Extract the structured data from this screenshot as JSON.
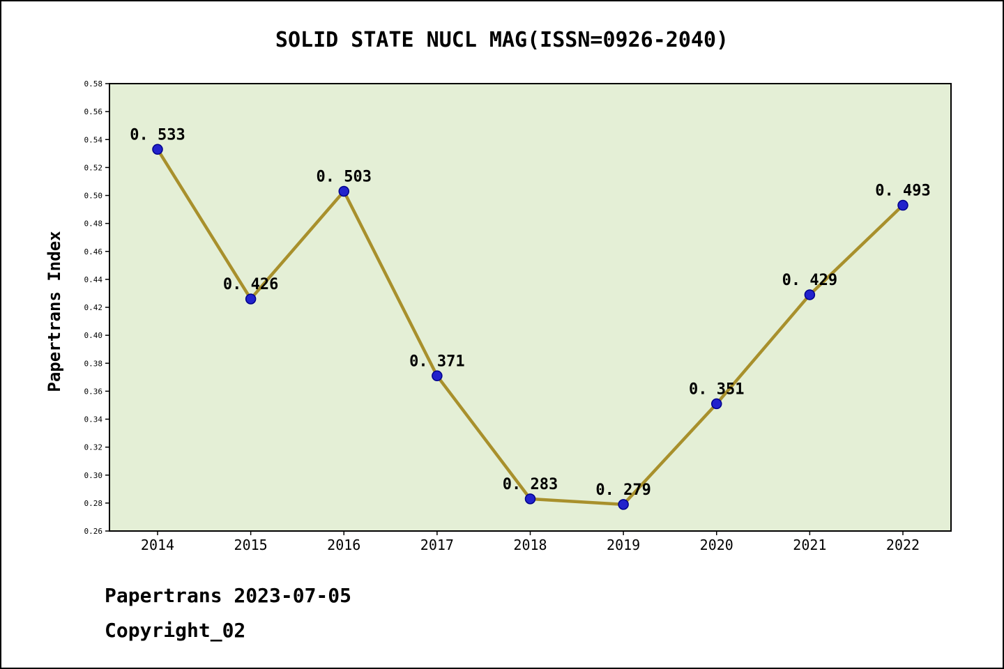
{
  "title": "SOLID STATE NUCL MAG(ISSN=0926-2040)",
  "footer": {
    "line1": "Papertrans 2023-07-05",
    "line2": "Copyright_02"
  },
  "chart_data": {
    "type": "line",
    "title": "SOLID STATE NUCL MAG(ISSN=0926-2040)",
    "xlabel": "",
    "ylabel": "Papertrans Index",
    "categories": [
      "2014",
      "2015",
      "2016",
      "2017",
      "2018",
      "2019",
      "2020",
      "2021",
      "2022"
    ],
    "values": [
      0.533,
      0.426,
      0.503,
      0.371,
      0.283,
      0.279,
      0.351,
      0.429,
      0.493
    ],
    "point_labels": [
      "0. 533",
      "0. 426",
      "0. 503",
      "0. 371",
      "0. 283",
      "0. 279",
      "0. 351",
      "0. 429",
      "0. 493"
    ],
    "ylim": [
      0.26,
      0.58
    ],
    "ytick_step": 0.02,
    "grid": false,
    "legend": "none",
    "colors": {
      "plot_background": "#e4efd6",
      "line": "#a8902c",
      "marker_fill": "#2222cc",
      "marker_edge": "#00008b",
      "axis": "#000000",
      "text": "#000000"
    }
  }
}
